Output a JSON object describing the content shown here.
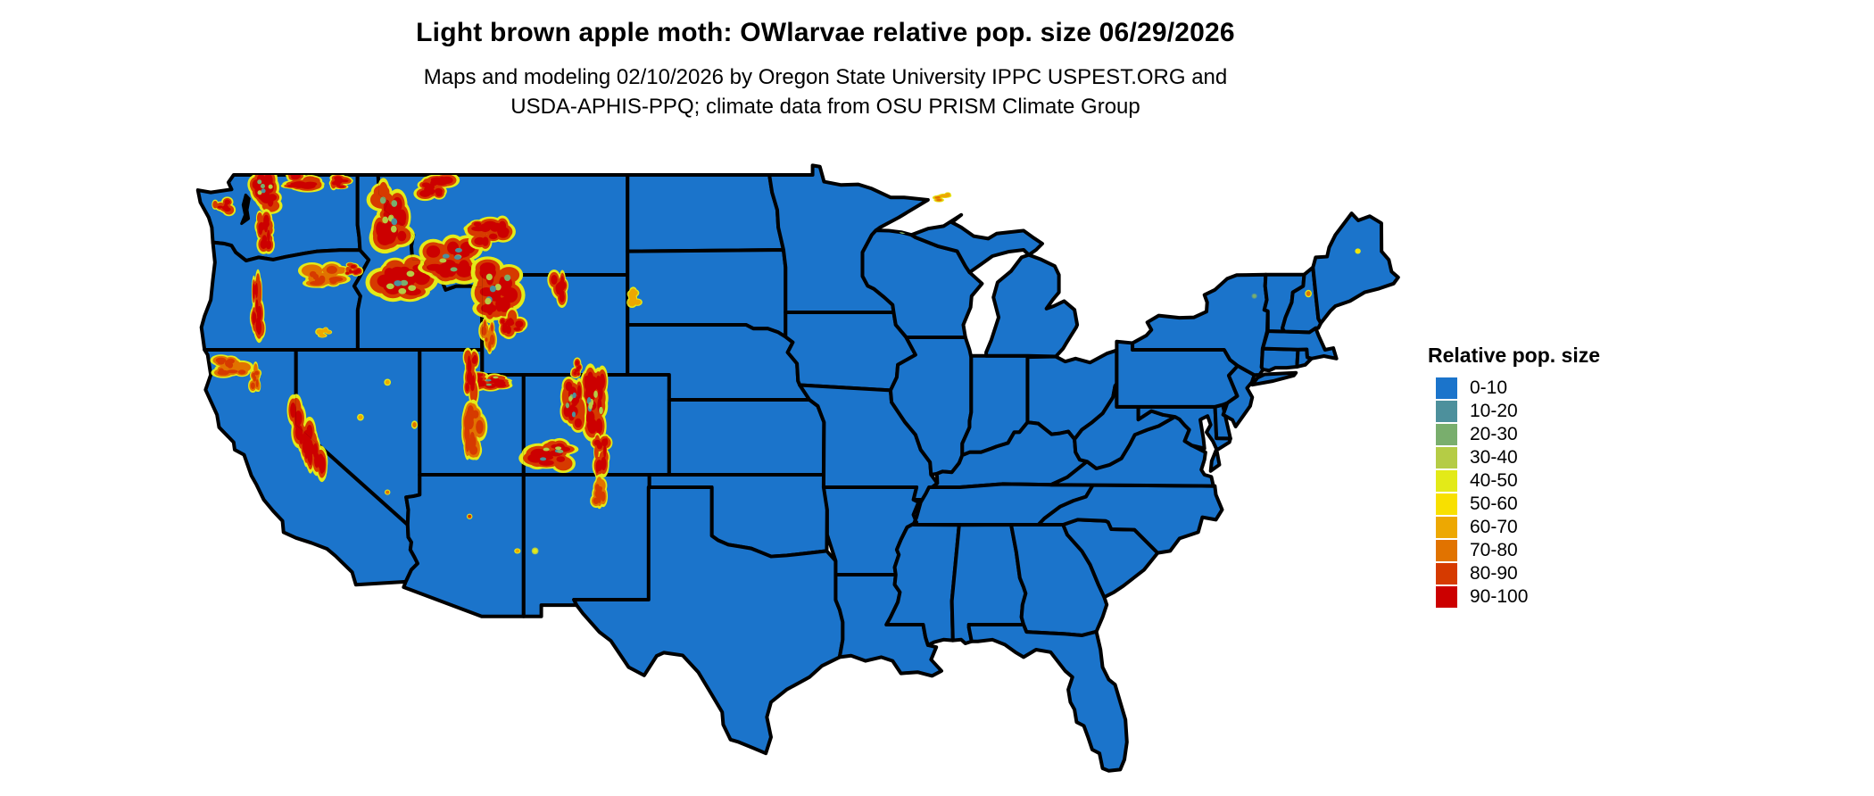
{
  "header": {
    "title": "Light brown apple moth: OWlarvae relative pop. size 06/29/2026",
    "subtitle_line1": "Maps and modeling 02/10/2026 by Oregon State University IPPC USPEST.ORG and",
    "subtitle_line2": "USDA-APHIS-PPQ; climate data from OSU PRISM Climate Group"
  },
  "legend": {
    "title": "Relative pop. size",
    "items": [
      {
        "label": "0-10",
        "color": "#1b74cb"
      },
      {
        "label": "10-20",
        "color": "#4d909c"
      },
      {
        "label": "20-30",
        "color": "#79ae6d"
      },
      {
        "label": "30-40",
        "color": "#b5cc45"
      },
      {
        "label": "40-50",
        "color": "#e3ea18"
      },
      {
        "label": "50-60",
        "color": "#f8e000"
      },
      {
        "label": "60-70",
        "color": "#eda802"
      },
      {
        "label": "70-80",
        "color": "#e17300"
      },
      {
        "label": "80-90",
        "color": "#d63a00"
      },
      {
        "label": "90-100",
        "color": "#cc0000"
      }
    ]
  },
  "map": {
    "base_category": "0-10",
    "base_color": "#1b74cb",
    "border_color": "#000000",
    "background_color": "#ffffff",
    "hotspots": [
      {
        "name": "wa-north-cascades",
        "lon": -121.5,
        "lat": 48.35,
        "w": 1.2,
        "h": 1.3,
        "core": 9,
        "mixed": true
      },
      {
        "name": "wa-okanogan",
        "lon": -119.6,
        "lat": 48.75,
        "w": 1.7,
        "h": 0.6,
        "core": 9,
        "mixed": false
      },
      {
        "name": "wa-selkirks",
        "lon": -117.8,
        "lat": 48.7,
        "w": 0.9,
        "h": 0.6,
        "core": 9,
        "mixed": false
      },
      {
        "name": "wa-south-cascades",
        "lon": -121.55,
        "lat": 46.75,
        "w": 0.7,
        "h": 1.2,
        "core": 9,
        "mixed": false
      },
      {
        "name": "wa-olympics",
        "lon": -123.55,
        "lat": 47.7,
        "w": 0.75,
        "h": 0.6,
        "core": 9,
        "mixed": false
      },
      {
        "name": "or-cascades",
        "lon": -121.85,
        "lat": 43.9,
        "w": 0.5,
        "h": 2.4,
        "core": 9,
        "mixed": false
      },
      {
        "name": "or-blue-mountains",
        "lon": -118.6,
        "lat": 44.9,
        "w": 1.5,
        "h": 0.9,
        "core": 8,
        "mixed": false
      },
      {
        "name": "or-wallowas",
        "lon": -117.25,
        "lat": 45.25,
        "w": 0.6,
        "h": 0.5,
        "core": 9,
        "mixed": false
      },
      {
        "name": "or-steens",
        "lon": -118.65,
        "lat": 42.7,
        "w": 0.5,
        "h": 0.35,
        "core": 6,
        "mixed": false
      },
      {
        "name": "ca-klamath",
        "lon": -123.15,
        "lat": 41.35,
        "w": 1.2,
        "h": 0.8,
        "core": 8,
        "mixed": false
      },
      {
        "name": "ca-shasta-lassen",
        "lon": -121.9,
        "lat": 40.9,
        "w": 0.5,
        "h": 0.9,
        "core": 8,
        "mixed": false
      },
      {
        "name": "ca-sierra-nevada",
        "lon": -119.55,
        "lat": 38.55,
        "w": 0.8,
        "h": 3.0,
        "core": 9,
        "mixed": false,
        "slant": -0.55
      },
      {
        "name": "nv-ruby",
        "lon": -115.6,
        "lat": 40.7,
        "w": 0.3,
        "h": 0.25,
        "core": 6,
        "mixed": false
      },
      {
        "name": "nv-toiyabe",
        "lon": -116.9,
        "lat": 39.3,
        "w": 0.3,
        "h": 0.25,
        "core": 6,
        "mixed": false
      },
      {
        "name": "nv-snake-range",
        "lon": -114.3,
        "lat": 39.0,
        "w": 0.28,
        "h": 0.3,
        "core": 7,
        "mixed": false
      },
      {
        "name": "nv-spring",
        "lon": -115.6,
        "lat": 36.3,
        "w": 0.25,
        "h": 0.2,
        "core": 7,
        "mixed": false
      },
      {
        "name": "id-central",
        "lon": -114.9,
        "lat": 44.8,
        "w": 2.1,
        "h": 1.7,
        "core": 9,
        "mixed": true
      },
      {
        "name": "id-panhandle",
        "lon": -115.5,
        "lat": 47.4,
        "w": 1.6,
        "h": 2.0,
        "core": 9,
        "mixed": true
      },
      {
        "name": "mt-glacier",
        "lon": -113.3,
        "lat": 48.5,
        "w": 1.3,
        "h": 0.9,
        "core": 9,
        "mixed": false
      },
      {
        "name": "mt-southwest",
        "lon": -112.6,
        "lat": 45.6,
        "w": 1.9,
        "h": 1.3,
        "core": 9,
        "mixed": true
      },
      {
        "name": "mt-little-belt",
        "lon": -110.7,
        "lat": 46.7,
        "w": 1.5,
        "h": 1.0,
        "core": 9,
        "mixed": false
      },
      {
        "name": "yellowstone-absaroka",
        "lon": -110.3,
        "lat": 44.4,
        "w": 1.7,
        "h": 1.9,
        "core": 9,
        "mixed": true
      },
      {
        "name": "wy-bighorns",
        "lon": -107.3,
        "lat": 44.3,
        "w": 0.8,
        "h": 1.1,
        "core": 9,
        "mixed": false
      },
      {
        "name": "wy-wind-river",
        "lon": -109.6,
        "lat": 43.0,
        "w": 1.0,
        "h": 0.9,
        "core": 9,
        "mixed": false
      },
      {
        "name": "wy-salt-river-range",
        "lon": -110.75,
        "lat": 42.6,
        "w": 0.6,
        "h": 1.0,
        "core": 8,
        "mixed": false
      },
      {
        "name": "wy-medicine-bow",
        "lon": -106.4,
        "lat": 41.2,
        "w": 0.55,
        "h": 0.6,
        "core": 9,
        "mixed": false
      },
      {
        "name": "ut-uintas",
        "lon": -110.7,
        "lat": 40.75,
        "w": 1.5,
        "h": 0.65,
        "core": 9,
        "mixed": true
      },
      {
        "name": "ut-wasatch",
        "lon": -111.6,
        "lat": 41.0,
        "w": 0.6,
        "h": 1.6,
        "core": 9,
        "mixed": false
      },
      {
        "name": "ut-wasatch-plateau",
        "lon": -111.5,
        "lat": 38.8,
        "w": 0.9,
        "h": 1.8,
        "core": 8,
        "mixed": false
      },
      {
        "name": "co-front-range",
        "lon": -105.65,
        "lat": 39.9,
        "w": 1.1,
        "h": 2.1,
        "core": 9,
        "mixed": true
      },
      {
        "name": "co-gore-sawatch",
        "lon": -106.7,
        "lat": 39.8,
        "w": 1.0,
        "h": 1.6,
        "core": 9,
        "mixed": true
      },
      {
        "name": "co-san-juans",
        "lon": -107.7,
        "lat": 37.8,
        "w": 1.7,
        "h": 1.0,
        "core": 9,
        "mixed": true
      },
      {
        "name": "co-sangre-de-cristo",
        "lon": -105.3,
        "lat": 37.8,
        "w": 0.7,
        "h": 1.4,
        "core": 9,
        "mixed": false
      },
      {
        "name": "nm-sangre-de-cristo",
        "lon": -105.45,
        "lat": 36.3,
        "w": 0.6,
        "h": 1.0,
        "core": 8,
        "mixed": false
      },
      {
        "name": "nm-mogollon",
        "lon": -108.5,
        "lat": 33.95,
        "w": 0.3,
        "h": 0.25,
        "core": 4,
        "mixed": false
      },
      {
        "name": "az-san-francisco-peaks",
        "lon": -111.65,
        "lat": 35.33,
        "w": 0.25,
        "h": 0.2,
        "core": 8,
        "mixed": false
      },
      {
        "name": "az-white-mountains",
        "lon": -109.35,
        "lat": 33.95,
        "w": 0.28,
        "h": 0.2,
        "core": 6,
        "mixed": false
      },
      {
        "name": "sd-black-hills",
        "lon": -103.75,
        "lat": 44.1,
        "w": 0.55,
        "h": 0.65,
        "core": 6,
        "mixed": false
      },
      {
        "name": "mi-isle-royale",
        "lon": -88.85,
        "lat": 48.1,
        "w": 0.7,
        "h": 0.22,
        "core": 7,
        "mixed": false,
        "slant": 0.25,
        "noclip": true
      },
      {
        "name": "mi-keweenaw",
        "lon": -89.95,
        "lat": 47.0,
        "w": 0.55,
        "h": 0.3,
        "core": 3,
        "mixed": false
      },
      {
        "name": "wi-apostle",
        "lon": -90.8,
        "lat": 46.75,
        "w": 0.35,
        "h": 0.2,
        "core": 3,
        "mixed": false
      },
      {
        "name": "nh-white-mountains",
        "lon": -71.3,
        "lat": 44.25,
        "w": 0.3,
        "h": 0.28,
        "core": 7,
        "mixed": false
      },
      {
        "name": "me-katahdin",
        "lon": -68.92,
        "lat": 45.95,
        "w": 0.25,
        "h": 0.2,
        "core": 5,
        "mixed": false
      },
      {
        "name": "ny-adirondack-dot",
        "lon": -73.9,
        "lat": 44.15,
        "w": 0.25,
        "h": 0.2,
        "core": 2,
        "mixed": false
      }
    ]
  }
}
